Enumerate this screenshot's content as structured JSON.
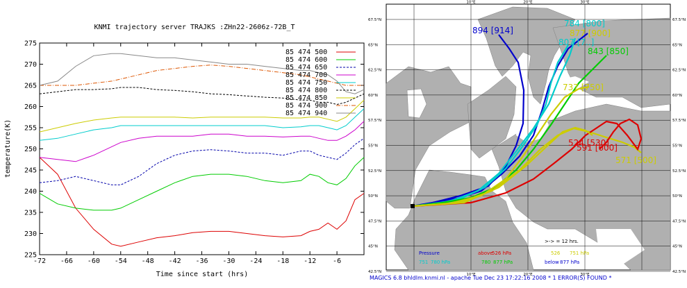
{
  "chart_data": {
    "type": "line",
    "title": "KNMI trajectory server TRAJKS :ZHn22-2606z-72B_T",
    "xlabel": "Time since start (hrs)",
    "ylabel": "temperature(K)",
    "xlim": [
      -72,
      0
    ],
    "ylim": [
      225,
      275
    ],
    "xticks": [
      -72,
      -66,
      -60,
      -54,
      -48,
      -42,
      -36,
      -30,
      -24,
      -18,
      -12,
      -6
    ],
    "yticks": [
      225,
      230,
      235,
      240,
      245,
      250,
      255,
      260,
      265,
      270,
      275
    ],
    "x": [
      -72,
      -68,
      -64,
      -60,
      -56,
      -54,
      -50,
      -46,
      -42,
      -38,
      -34,
      -30,
      -26,
      -22,
      -18,
      -14,
      -12,
      -10,
      -8,
      -6,
      -4,
      -2,
      0
    ],
    "series": [
      {
        "name": "85 474 500",
        "color": "#dd0000",
        "dash": "",
        "values": [
          248,
          244,
          236,
          231,
          227.5,
          227,
          228,
          229,
          229.5,
          230.2,
          230.5,
          230.5,
          230,
          229.5,
          229.2,
          229.5,
          230.5,
          231,
          232.5,
          231,
          233,
          238,
          239.5
        ]
      },
      {
        "name": "85 474 600",
        "color": "#00cc00",
        "dash": "",
        "values": [
          239.5,
          237,
          236,
          235.5,
          235.5,
          236,
          238,
          240,
          242,
          243.5,
          244,
          244,
          243.5,
          242.5,
          242,
          242.5,
          244,
          243.5,
          242,
          241.5,
          243,
          246,
          248
        ]
      },
      {
        "name": "85 474 650",
        "color": "#0000aa",
        "dash": "3,2",
        "values": [
          242,
          242.5,
          243.5,
          242.5,
          241.5,
          241.5,
          243.5,
          246.5,
          248.5,
          249.5,
          249.8,
          249.5,
          249,
          249,
          248.5,
          249.5,
          249.5,
          248.5,
          248,
          247.5,
          249,
          251,
          252.5
        ]
      },
      {
        "name": "85 474 700",
        "color": "#cc00cc",
        "dash": "",
        "values": [
          248,
          247.5,
          247,
          248.5,
          250.5,
          251.5,
          252.5,
          253,
          253,
          253,
          253.5,
          253.5,
          253,
          253,
          252.8,
          253,
          253,
          252.5,
          252,
          252,
          253,
          254.5,
          256.5
        ]
      },
      {
        "name": "85 474 750",
        "color": "#00cccc",
        "dash": "",
        "values": [
          252,
          252.5,
          253.5,
          254.5,
          255,
          255.5,
          255.5,
          255.5,
          255.5,
          255.5,
          255.5,
          255.5,
          255.5,
          255.5,
          255,
          255.2,
          255.5,
          255.5,
          255,
          254.5,
          255.5,
          257.5,
          259.5
        ]
      },
      {
        "name": "85 474 800",
        "color": "#000000",
        "dash": "3,2",
        "values": [
          263,
          263.5,
          264,
          264,
          264.2,
          264.5,
          264.5,
          264,
          263.8,
          263.5,
          263,
          262.8,
          262.5,
          262.2,
          262,
          261.5,
          261.5,
          261,
          261,
          260.5,
          261,
          262,
          263
        ]
      },
      {
        "name": "85 474 850",
        "color": "#cccc00",
        "dash": "",
        "values": [
          254,
          255,
          256,
          256.8,
          257.3,
          257.5,
          257.5,
          257.5,
          257.5,
          257.3,
          257.5,
          257.5,
          257.5,
          257.5,
          257.3,
          257.3,
          257.5,
          257.5,
          257,
          256.5,
          257.5,
          259.5,
          261.5
        ]
      },
      {
        "name": "85 474 900",
        "color": "#dd5500",
        "dash": "6,2,1,2",
        "values": [
          265,
          265,
          265,
          265.5,
          266,
          266.5,
          267.5,
          268.5,
          269,
          269.5,
          269.8,
          269.5,
          269,
          268.5,
          268,
          267.5,
          267,
          266.5,
          266,
          265.5,
          265,
          265,
          265
        ]
      },
      {
        "name": "85 474 940",
        "color": "#888888",
        "dash": "",
        "values": [
          265,
          266,
          269.5,
          272,
          272.5,
          272.5,
          272,
          271.5,
          271.5,
          271,
          270.5,
          270,
          270,
          269.5,
          269,
          268.5,
          268.5,
          268,
          267.5,
          266,
          263.5,
          263,
          264
        ]
      }
    ]
  },
  "map": {
    "lat_labels": [
      "67.5°N",
      "65°N",
      "62.5°N",
      "60°N",
      "57.5°N",
      "55°N",
      "52.5°N",
      "50°N",
      "47.5°N",
      "45°N",
      "42.5°N"
    ],
    "lon_labels": [
      "10°E",
      "20°E",
      "30°E"
    ],
    "traj_labels": [
      {
        "text": "894 [914]",
        "color": "#0000cc"
      },
      {
        "text": "784 [800]",
        "color": "#00cccc"
      },
      {
        "text": "877 [900]",
        "color": "#cccc00"
      },
      {
        "text": "843 [850]",
        "color": "#00cc00"
      },
      {
        "text": "807 [7..]",
        "color": "#00cccc"
      },
      {
        "text": "737 [750]",
        "color": "#cccc00"
      },
      {
        "text": "524 [530]",
        "color": "#dd0000"
      },
      {
        "text": "591 [600]",
        "color": "#dd0000"
      },
      {
        "text": "571 [500]",
        "color": "#cccc00"
      }
    ],
    "timestep_note": ">-> = 12 hrs.",
    "legend": [
      {
        "label": "Pressure",
        "color": "#0000cc"
      },
      {
        "label": "above",
        "color": "#dd0000"
      },
      {
        "label": "526 hPa",
        "color": "#dd0000"
      },
      {
        "label": "526",
        "color": "#cccc00"
      },
      {
        "label": "751 hPa",
        "color": "#cccc00"
      },
      {
        "label": "751",
        "color": "#00cccc"
      },
      {
        "label": "780 hPa",
        "color": "#00cccc"
      },
      {
        "label": "780",
        "color": "#00cc00"
      },
      {
        "label": "877 hPa",
        "color": "#00cc00"
      },
      {
        "label": "below",
        "color": "#0000cc"
      },
      {
        "label": "877 hPa",
        "color": "#0000cc"
      }
    ],
    "footer": "MAGICS 6.8 bhldlm.knmi.nl - apache Tue Dec 23 17:22:16 2008 *   1 ERROR(S) FOUND *"
  }
}
